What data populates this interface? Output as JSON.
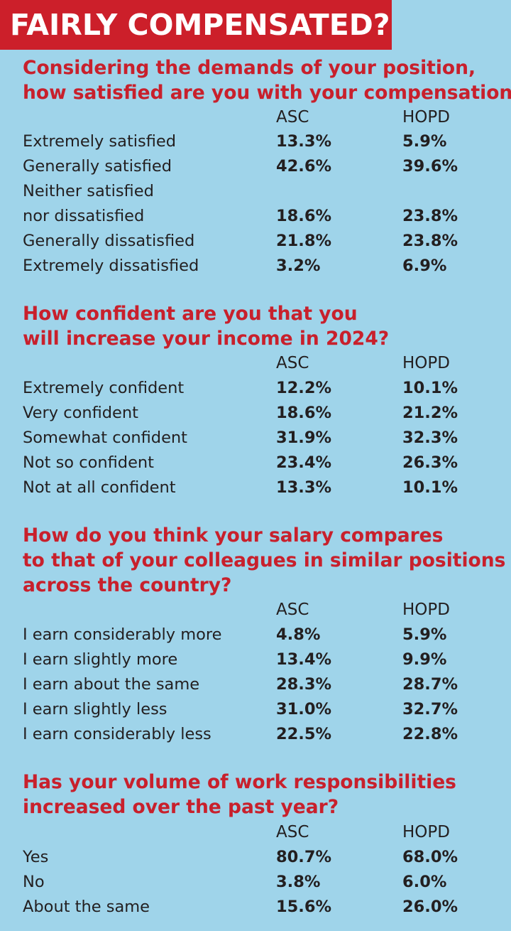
{
  "title": "FAIRLY COMPENSATED?",
  "colors": {
    "background": "#9fd4ea",
    "banner": "#cc1f2a",
    "question_text": "#c8202c",
    "body_text": "#231f20"
  },
  "chart_data": [
    {
      "type": "table",
      "question": [
        "Considering the demands of your position,",
        "how satisfied are you with your compensation?"
      ],
      "columns": [
        "ASC",
        "HOPD"
      ],
      "rows": [
        {
          "label": [
            "Extremely satisfied"
          ],
          "ASC": "13.3%",
          "HOPD": "5.9%"
        },
        {
          "label": [
            "Generally satisfied"
          ],
          "ASC": "42.6%",
          "HOPD": "39.6%"
        },
        {
          "label": [
            "Neither satisfied",
            "nor dissatisfied"
          ],
          "ASC": "18.6%",
          "HOPD": "23.8%"
        },
        {
          "label": [
            "Generally dissatisfied"
          ],
          "ASC": "21.8%",
          "HOPD": "23.8%"
        },
        {
          "label": [
            "Extremely dissatisfied"
          ],
          "ASC": "3.2%",
          "HOPD": "6.9%"
        }
      ]
    },
    {
      "type": "table",
      "question": [
        "How confident are you that you",
        "will increase your income in 2024?"
      ],
      "columns": [
        "ASC",
        "HOPD"
      ],
      "rows": [
        {
          "label": [
            "Extremely confident"
          ],
          "ASC": "12.2%",
          "HOPD": "10.1%"
        },
        {
          "label": [
            "Very confident"
          ],
          "ASC": "18.6%",
          "HOPD": "21.2%"
        },
        {
          "label": [
            "Somewhat confident"
          ],
          "ASC": "31.9%",
          "HOPD": "32.3%"
        },
        {
          "label": [
            "Not so confident"
          ],
          "ASC": "23.4%",
          "HOPD": "26.3%"
        },
        {
          "label": [
            "Not at all confident"
          ],
          "ASC": "13.3%",
          "HOPD": "10.1%"
        }
      ]
    },
    {
      "type": "table",
      "question": [
        "How do you think your salary compares",
        "to that of your colleagues in similar positions",
        "across the country?"
      ],
      "columns": [
        "ASC",
        "HOPD"
      ],
      "rows": [
        {
          "label": [
            "I earn considerably more"
          ],
          "ASC": "4.8%",
          "HOPD": "5.9%"
        },
        {
          "label": [
            "I earn slightly more"
          ],
          "ASC": "13.4%",
          "HOPD": "9.9%"
        },
        {
          "label": [
            "I earn about the same"
          ],
          "ASC": "28.3%",
          "HOPD": "28.7%"
        },
        {
          "label": [
            "I earn slightly less"
          ],
          "ASC": "31.0%",
          "HOPD": "32.7%"
        },
        {
          "label": [
            "I earn considerably less"
          ],
          "ASC": "22.5%",
          "HOPD": "22.8%"
        }
      ]
    },
    {
      "type": "table",
      "question": [
        "Has your volume of work responsibilities",
        "increased over the past year?"
      ],
      "columns": [
        "ASC",
        "HOPD"
      ],
      "rows": [
        {
          "label": [
            "Yes"
          ],
          "ASC": "80.7%",
          "HOPD": "68.0%"
        },
        {
          "label": [
            "No"
          ],
          "ASC": "3.8%",
          "HOPD": "6.0%"
        },
        {
          "label": [
            "About the same"
          ],
          "ASC": "15.6%",
          "HOPD": "26.0%"
        }
      ]
    }
  ]
}
